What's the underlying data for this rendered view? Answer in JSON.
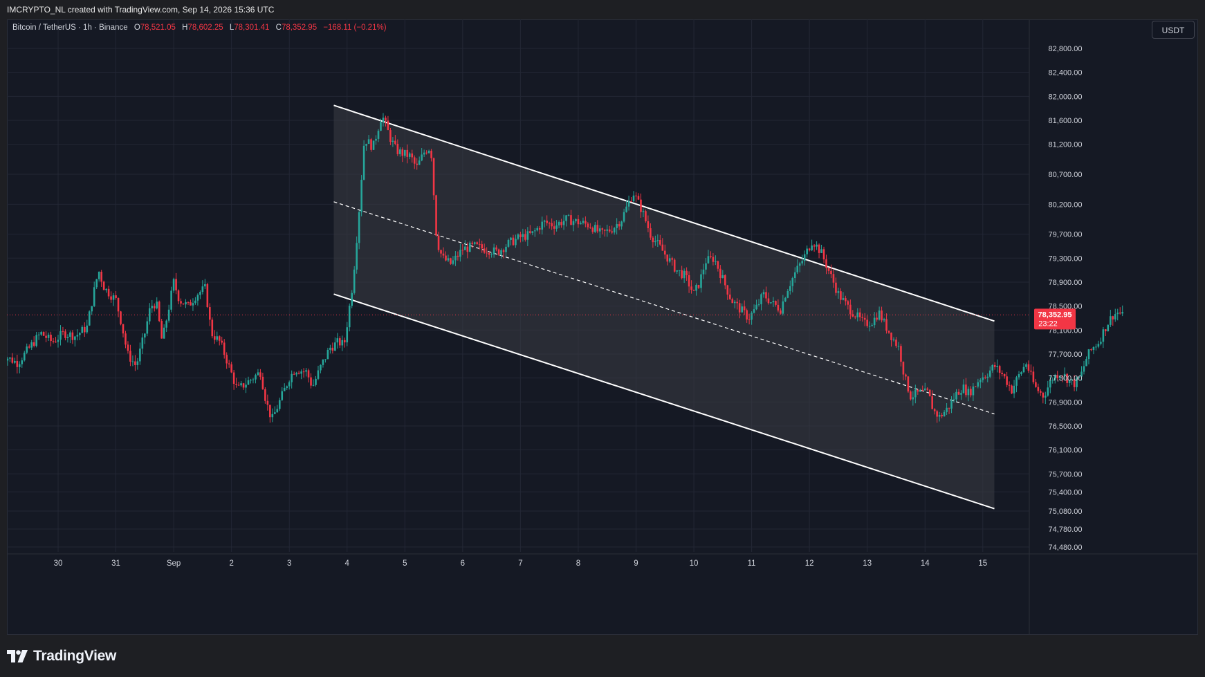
{
  "header": {
    "attribution": "IMCRYPTO_NL created with TradingView.com, Sep 14, 2026 15:36 UTC"
  },
  "legend": {
    "symbol": "Bitcoin / TetherUS · 1h · Binance",
    "open_label": "O",
    "open": "78,521.05",
    "high_label": "H",
    "high": "78,602.25",
    "low_label": "L",
    "low": "78,301.41",
    "close_label": "C",
    "close": "78,352.95",
    "change": "−168.11 (−0.21%)"
  },
  "currency": "USDT",
  "price_tag": {
    "price": "78,352.95",
    "countdown": "23:22"
  },
  "footer": {
    "brand": "TradingView"
  },
  "colors": {
    "background": "#151924",
    "grid": "#232735",
    "up": "#26a69a",
    "down": "#f23645",
    "channel_line": "#ffffff",
    "channel_fill": "#3a3c44",
    "price_line": "#f23645",
    "axis_text": "#d1d4dc"
  },
  "chart_data": {
    "type": "candlestick",
    "symbol": "BTCUSDT",
    "interval": "1h",
    "x_ticks": [
      "30",
      "31",
      "Sep",
      "2",
      "3",
      "4",
      "5",
      "6",
      "7",
      "8",
      "9",
      "10",
      "11",
      "12",
      "13",
      "14",
      "15"
    ],
    "y_ticks": [
      82800,
      82400,
      82000,
      81600,
      81200,
      80700,
      80200,
      79700,
      79300,
      78900,
      78500,
      78100,
      77700,
      77300,
      76900,
      76500,
      76100,
      75700,
      75400,
      75080,
      74780,
      74480
    ],
    "y_tick_labels": [
      "82,800.00",
      "82,400.00",
      "82,000.00",
      "81,600.00",
      "81,200.00",
      "80,700.00",
      "80,200.00",
      "79,700.00",
      "79,300.00",
      "78,900.00",
      "78,500.00",
      "78,100.00",
      "77,700.00",
      "77,300.00",
      "76,900.00",
      "76,500.00",
      "76,100.00",
      "75,700.00",
      "75,400.00",
      "75,080.00",
      "74,780.00",
      "74,480.00"
    ],
    "last_price": 78352.95,
    "channel": {
      "upper": [
        [
          3.77,
          81850
        ],
        [
          15.2,
          78250
        ]
      ],
      "lower": [
        [
          3.77,
          78700
        ],
        [
          15.2,
          75120
        ]
      ],
      "mid": [
        [
          3.77,
          80240
        ],
        [
          15.2,
          76700
        ]
      ]
    },
    "price_path": [
      [
        29.0,
        77700
      ],
      [
        29.3,
        77550
      ],
      [
        29.5,
        77800
      ],
      [
        29.7,
        78050
      ],
      [
        29.9,
        77900
      ],
      [
        30.1,
        78050
      ],
      [
        30.3,
        78000
      ],
      [
        30.5,
        78150
      ],
      [
        30.6,
        78650
      ],
      [
        30.7,
        79100
      ],
      [
        30.8,
        78800
      ],
      [
        31.0,
        78600
      ],
      [
        31.1,
        78200
      ],
      [
        31.2,
        77700
      ],
      [
        31.35,
        77500
      ],
      [
        31.5,
        78050
      ],
      [
        31.6,
        78500
      ],
      [
        31.7,
        78550
      ],
      [
        31.8,
        77900
      ],
      [
        31.9,
        78400
      ],
      [
        32.0,
        78900
      ],
      [
        32.1,
        78600
      ],
      [
        32.25,
        78500
      ],
      [
        32.4,
        78700
      ],
      [
        32.55,
        78800
      ],
      [
        32.65,
        78050
      ],
      [
        32.8,
        77900
      ],
      [
        32.9,
        77650
      ],
      [
        33.1,
        77100
      ],
      [
        33.3,
        77250
      ],
      [
        33.5,
        77400
      ],
      [
        33.6,
        76900
      ],
      [
        33.7,
        76600
      ],
      [
        33.85,
        76950
      ],
      [
        34.0,
        77300
      ],
      [
        34.1,
        77450
      ],
      [
        34.3,
        77400
      ],
      [
        34.4,
        77150
      ],
      [
        34.55,
        77500
      ],
      [
        34.7,
        77800
      ],
      [
        34.85,
        77900
      ],
      [
        34.95,
        77850
      ],
      [
        35.0,
        78200
      ],
      [
        35.1,
        78900
      ],
      [
        35.2,
        80000
      ],
      [
        35.3,
        81300
      ],
      [
        35.45,
        81150
      ],
      [
        35.6,
        81700
      ],
      [
        35.75,
        81300
      ],
      [
        35.85,
        81100
      ],
      [
        35.95,
        81050
      ],
      [
        36.1,
        81000
      ],
      [
        36.2,
        80800
      ],
      [
        36.35,
        81100
      ],
      [
        36.45,
        81150
      ],
      [
        36.55,
        79600
      ],
      [
        36.65,
        79300
      ],
      [
        36.8,
        79200
      ],
      [
        37.0,
        79450
      ],
      [
        37.2,
        79500
      ],
      [
        37.4,
        79450
      ],
      [
        37.6,
        79400
      ],
      [
        37.8,
        79550
      ],
      [
        38.0,
        79650
      ],
      [
        38.2,
        79700
      ],
      [
        38.4,
        79900
      ],
      [
        38.6,
        79850
      ],
      [
        38.8,
        79950
      ],
      [
        39.0,
        79900
      ],
      [
        39.2,
        79850
      ],
      [
        39.4,
        79700
      ],
      [
        39.6,
        79800
      ],
      [
        39.75,
        79950
      ],
      [
        39.95,
        80400
      ],
      [
        40.1,
        80100
      ],
      [
        40.25,
        79700
      ],
      [
        40.4,
        79500
      ],
      [
        40.55,
        79300
      ],
      [
        40.7,
        79100
      ],
      [
        40.85,
        79000
      ],
      [
        41.0,
        78700
      ],
      [
        41.1,
        78900
      ],
      [
        41.2,
        79250
      ],
      [
        41.35,
        79300
      ],
      [
        41.5,
        78950
      ],
      [
        41.65,
        78600
      ],
      [
        41.8,
        78450
      ],
      [
        41.95,
        78300
      ],
      [
        42.1,
        78500
      ],
      [
        42.2,
        78700
      ],
      [
        42.35,
        78550
      ],
      [
        42.5,
        78450
      ],
      [
        42.6,
        78750
      ],
      [
        42.75,
        79050
      ],
      [
        42.9,
        79300
      ],
      [
        43.05,
        79600
      ],
      [
        43.2,
        79400
      ],
      [
        43.35,
        79050
      ],
      [
        43.5,
        78700
      ],
      [
        43.65,
        78500
      ],
      [
        43.8,
        78350
      ],
      [
        43.95,
        78200
      ],
      [
        44.1,
        78250
      ],
      [
        44.2,
        78400
      ],
      [
        44.3,
        78200
      ],
      [
        44.45,
        77950
      ],
      [
        44.55,
        77800
      ],
      [
        44.65,
        77300
      ],
      [
        44.75,
        77000
      ],
      [
        44.9,
        77050
      ],
      [
        45.05,
        77050
      ],
      [
        45.15,
        76750
      ],
      [
        45.25,
        76650
      ],
      [
        45.4,
        76800
      ],
      [
        45.55,
        77050
      ],
      [
        45.65,
        77150
      ],
      [
        45.75,
        77050
      ],
      [
        45.85,
        77150
      ],
      [
        45.95,
        77300
      ],
      [
        46.05,
        77350
      ],
      [
        46.2,
        77500
      ],
      [
        46.35,
        77350
      ],
      [
        46.5,
        77100
      ],
      [
        46.6,
        77300
      ],
      [
        46.75,
        77550
      ],
      [
        46.9,
        77150
      ],
      [
        47.05,
        77000
      ],
      [
        47.2,
        77300
      ],
      [
        47.35,
        77400
      ],
      [
        47.5,
        77250
      ],
      [
        47.6,
        77200
      ],
      [
        47.7,
        77350
      ],
      [
        47.8,
        77650
      ],
      [
        47.9,
        77800
      ],
      [
        48.0,
        77900
      ],
      [
        48.15,
        78200
      ],
      [
        48.25,
        78350
      ],
      [
        48.35,
        78400
      ],
      [
        48.45,
        78300
      ]
    ]
  }
}
